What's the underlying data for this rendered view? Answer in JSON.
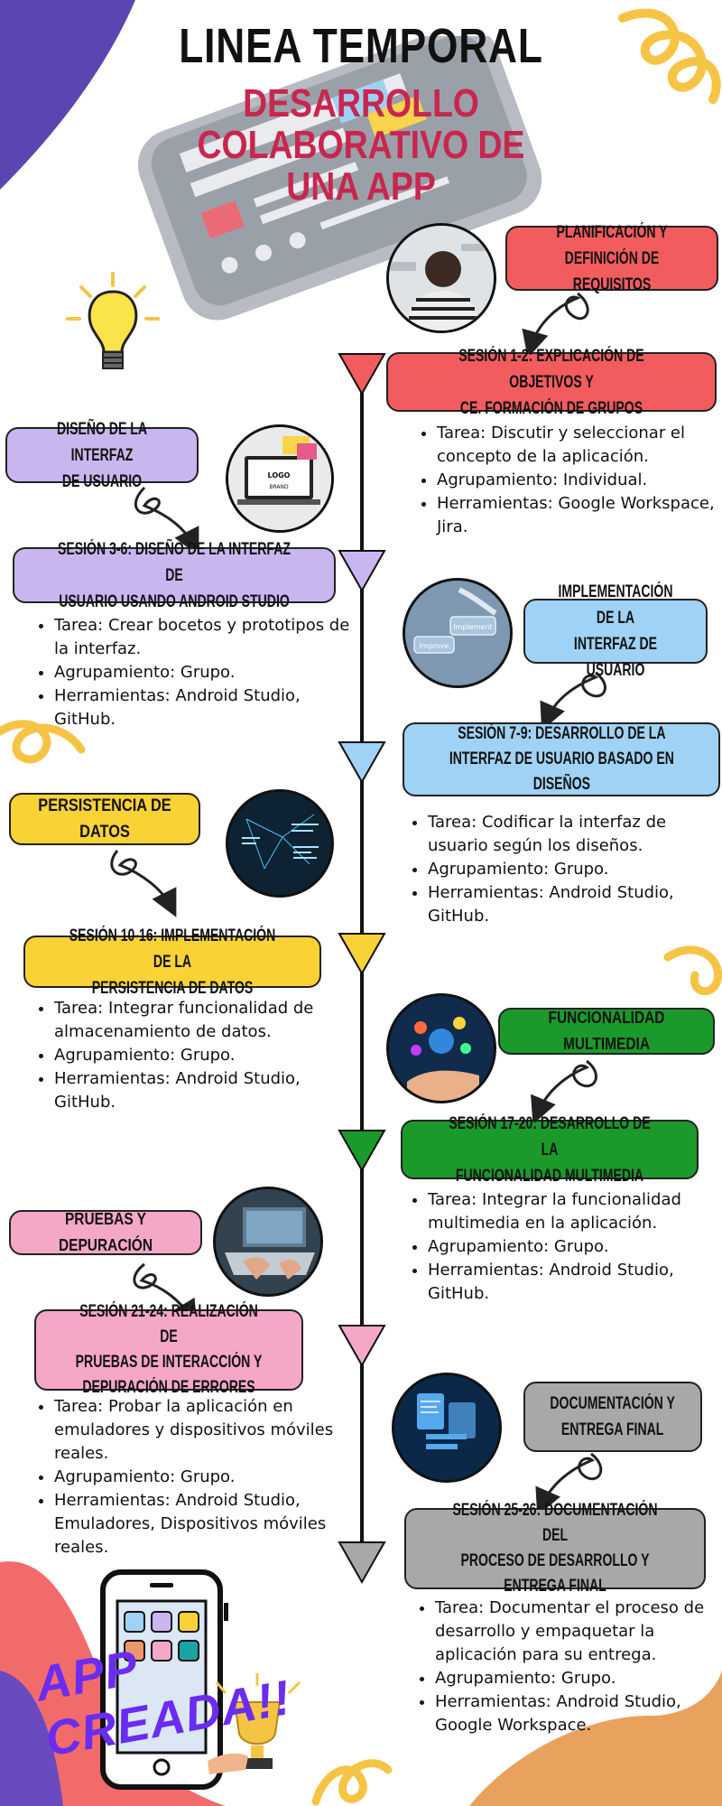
{
  "header": {
    "title": "LINEA TEMPORAL",
    "subtitle_line1": "DESARROLLO COLABORATIVO DE",
    "subtitle_line2": "UNA APP"
  },
  "colors": {
    "red": "#f25c5f",
    "lavender": "#c9b6ee",
    "blue": "#9fd2f4",
    "yellow": "#f9d236",
    "green": "#1a9a2a",
    "pink": "#f5a7c8",
    "gray": "#a8a8a8"
  },
  "phases": [
    {
      "phase_line1": "PLANIFICACIÓN Y",
      "phase_line2": "DEFINICIÓN DE REQUISITOS",
      "session_line1": "SESIÓN 1-2: EXPLICACIÓN DE OBJETIVOS Y",
      "session_line2": "CE. FORMACIÓN DE GRUPOS",
      "bullets": [
        "Tarea: Discutir y seleccionar el concepto de la aplicación.",
        "Agrupamiento: Individual.",
        "Herramientas: Google Workspace, Jira."
      ]
    },
    {
      "phase_line1": "DISEÑO DE LA INTERFAZ",
      "phase_line2": "DE USUARIO",
      "session_line1": "SESIÓN 3-6: DISEÑO DE LA INTERFAZ DE",
      "session_line2": "USUARIO USANDO ANDROID STUDIO",
      "photo_text": [
        "LOGO",
        "BRAND"
      ],
      "bullets": [
        "Tarea: Crear bocetos y prototipos de la interfaz.",
        "Agrupamiento: Grupo.",
        "Herramientas: Android Studio, GitHub."
      ]
    },
    {
      "phase_line1": "IMPLEMENTACIÓN DE LA",
      "phase_line2": "INTERFAZ DE USUARIO",
      "session_line1": "SESIÓN 7-9: DESARROLLO DE LA",
      "session_line2": "INTERFAZ DE USUARIO BASADO EN",
      "session_line3": "DISEÑOS",
      "photo_text": [
        "Implement",
        "Improve"
      ],
      "bullets": [
        "Tarea: Codificar la interfaz de usuario según los diseños.",
        "Agrupamiento: Grupo.",
        "Herramientas: Android Studio, GitHub."
      ]
    },
    {
      "phase_line1": "PERSISTENCIA DE DATOS",
      "session_line1": "SESIÓN 10-16: IMPLEMENTACIÓN DE LA",
      "session_line2": "PERSISTENCIA DE DATOS",
      "bullets": [
        "Tarea: Integrar funcionalidad de almacenamiento de datos.",
        "Agrupamiento: Grupo.",
        "Herramientas: Android Studio, GitHub."
      ]
    },
    {
      "phase_line1": "FUNCIONALIDAD MULTIMEDIA",
      "session_line1": "SESIÓN 17-20: DESARROLLO DE LA",
      "session_line2": "FUNCIONALIDAD MULTIMEDIA",
      "bullets": [
        "Tarea: Integrar la funcionalidad multimedia en la aplicación.",
        "Agrupamiento: Grupo.",
        "Herramientas: Android Studio, GitHub."
      ]
    },
    {
      "phase_line1": "PRUEBAS Y DEPURACIÓN",
      "session_line1": "SESIÓN 21-24: REALIZACIÓN DE",
      "session_line2": "PRUEBAS DE INTERACCIÓN Y",
      "session_line3": "DEPURACIÓN DE ERRORES",
      "bullets": [
        "Tarea: Probar la aplicación en emuladores y dispositivos móviles reales.",
        "Agrupamiento: Grupo.",
        "Herramientas: Android Studio, Emuladores, Dispositivos móviles reales."
      ]
    },
    {
      "phase_line1": "DOCUMENTACIÓN Y",
      "phase_line2": "ENTREGA FINAL",
      "session_line1": "SESIÓN 25-26: DOCUMENTACIÓN DEL",
      "session_line2": "PROCESO DE DESARROLLO Y",
      "session_line3": "ENTREGA FINAL",
      "bullets": [
        "Tarea: Documentar el proceso de desarrollo y empaquetar la aplicación para su entrega.",
        "Agrupamiento: Grupo.",
        "Herramientas: Android Studio, Google Workspace."
      ]
    }
  ],
  "footer": {
    "banner": "APP CREADA!!"
  }
}
